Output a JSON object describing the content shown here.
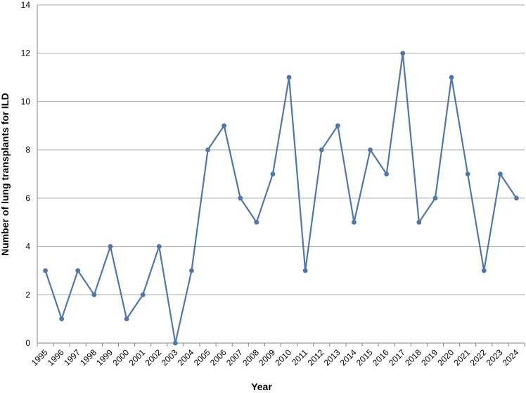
{
  "chart_data": {
    "type": "line",
    "title": "",
    "xlabel": "Year",
    "ylabel": "Number of lung transplants for ILD",
    "ylim": [
      0,
      14
    ],
    "y_ticks": [
      0,
      2,
      4,
      6,
      8,
      10,
      12,
      14
    ],
    "grid": true,
    "legend": "none",
    "color": "#4f76ad",
    "categories": [
      "1995",
      "1996",
      "1997",
      "1998",
      "1999",
      "2000",
      "2001",
      "2002",
      "2003",
      "2004",
      "2005",
      "2006",
      "2007",
      "2008",
      "2009",
      "2010",
      "2011",
      "2012",
      "2013",
      "2014",
      "2015",
      "2016",
      "2017",
      "2018",
      "2019",
      "2020",
      "2021",
      "2022",
      "2023",
      "2024"
    ],
    "series": [
      {
        "values": [
          3,
          1,
          3,
          2,
          4,
          1,
          2,
          4,
          0,
          3,
          8,
          9,
          6,
          5,
          7,
          11,
          3,
          8,
          9,
          5,
          8,
          7,
          12,
          5,
          6,
          11,
          7,
          3,
          7,
          6
        ]
      }
    ]
  }
}
